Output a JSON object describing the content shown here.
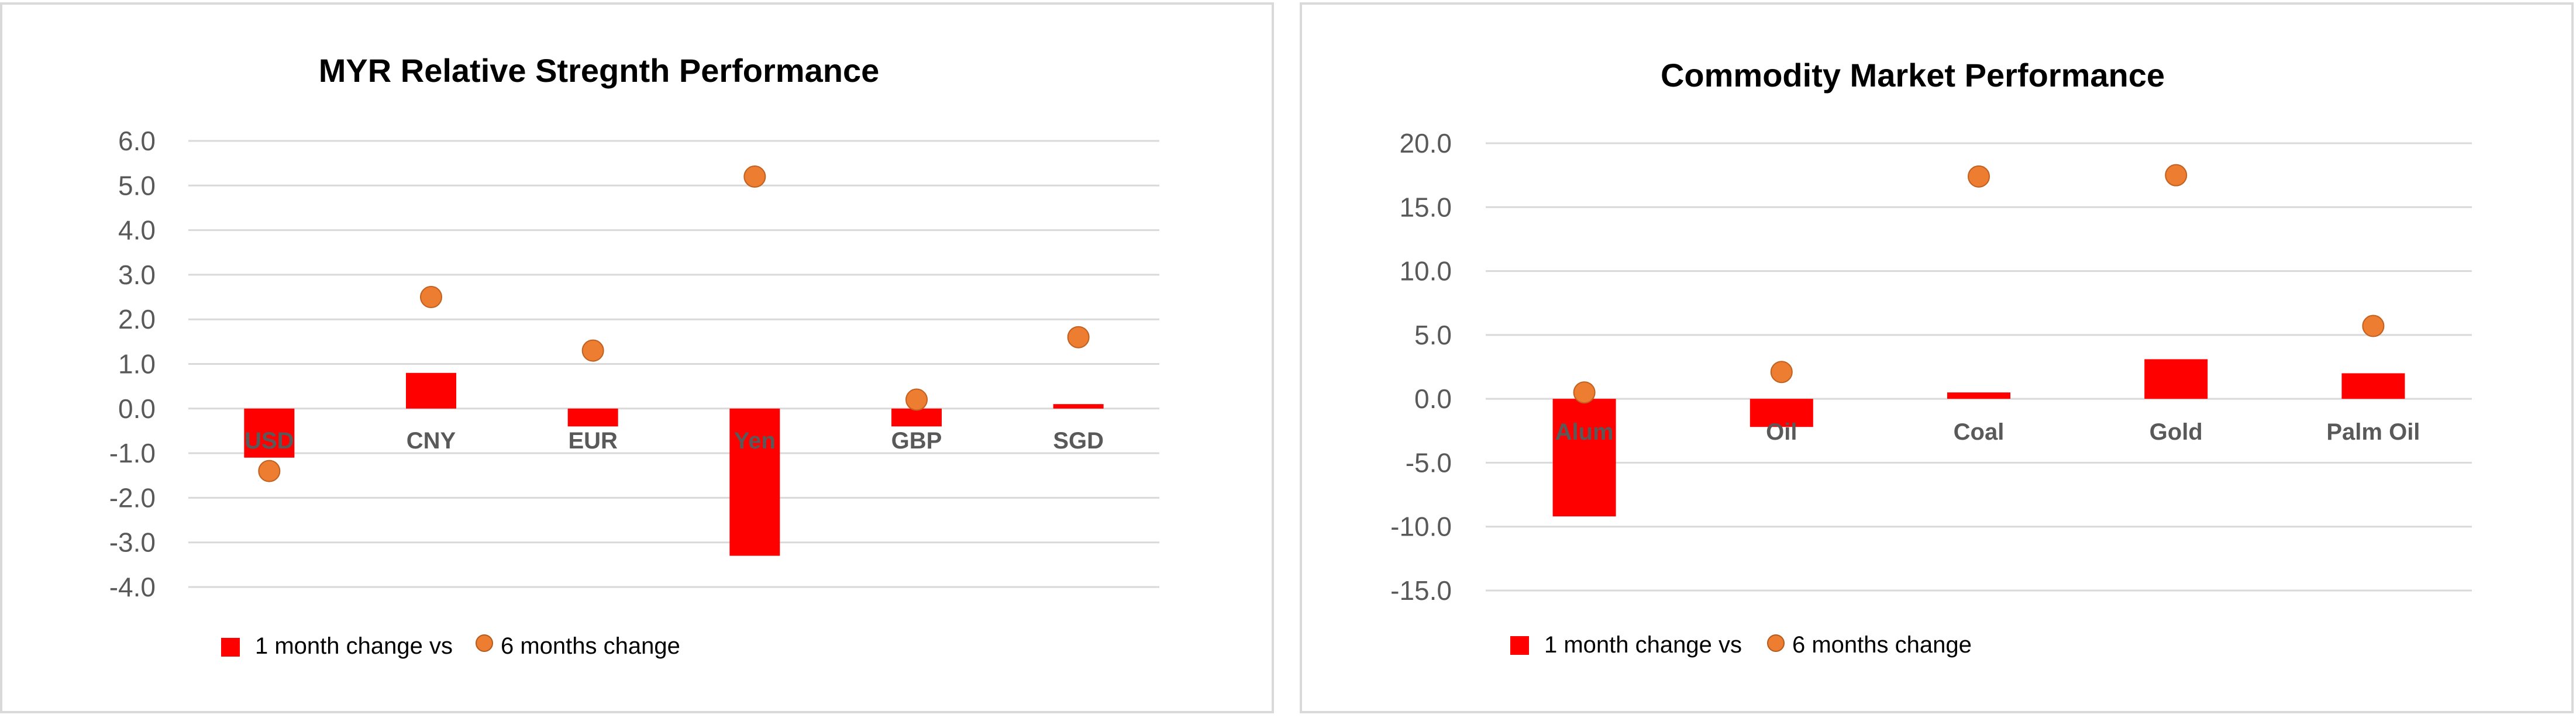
{
  "chart_data": [
    {
      "type": "bar",
      "title": "MYR Relative Stregnth Performance",
      "categories": [
        "USD",
        "CNY",
        "EUR",
        "Yen",
        "GBP",
        "SGD"
      ],
      "series": [
        {
          "name": "1 month change vs",
          "type": "bar",
          "color": "#ff0000",
          "values": [
            -1.1,
            0.8,
            -0.4,
            -3.3,
            -0.4,
            0.1
          ]
        },
        {
          "name": "6 months change",
          "type": "scatter",
          "color": "#ed7d31",
          "values": [
            -1.4,
            2.5,
            1.3,
            5.2,
            0.2,
            1.6
          ]
        }
      ],
      "ylim": [
        -4.0,
        6.0
      ],
      "yticks": [
        "6.0",
        "5.0",
        "4.0",
        "3.0",
        "2.0",
        "1.0",
        "0.0",
        "-1.0",
        "-2.0",
        "-3.0",
        "-4.0"
      ],
      "grid": true,
      "legend": "bottom-left"
    },
    {
      "type": "bar",
      "title": "Commodity Market Performance",
      "categories": [
        "Alum",
        "Oil",
        "Coal",
        "Gold",
        "Palm Oil"
      ],
      "series": [
        {
          "name": "1 month change vs",
          "type": "bar",
          "color": "#ff0000",
          "values": [
            -9.2,
            -2.2,
            0.5,
            3.1,
            2.0
          ]
        },
        {
          "name": "6 months change",
          "type": "scatter",
          "color": "#ed7d31",
          "values": [
            0.5,
            2.1,
            17.4,
            17.5,
            5.7
          ]
        }
      ],
      "ylim": [
        -15.0,
        20.0
      ],
      "yticks": [
        "20.0",
        "15.0",
        "10.0",
        "5.0",
        "0.0",
        "-5.0",
        "-10.0",
        "-15.0"
      ],
      "grid": true,
      "legend": "bottom-left"
    }
  ]
}
